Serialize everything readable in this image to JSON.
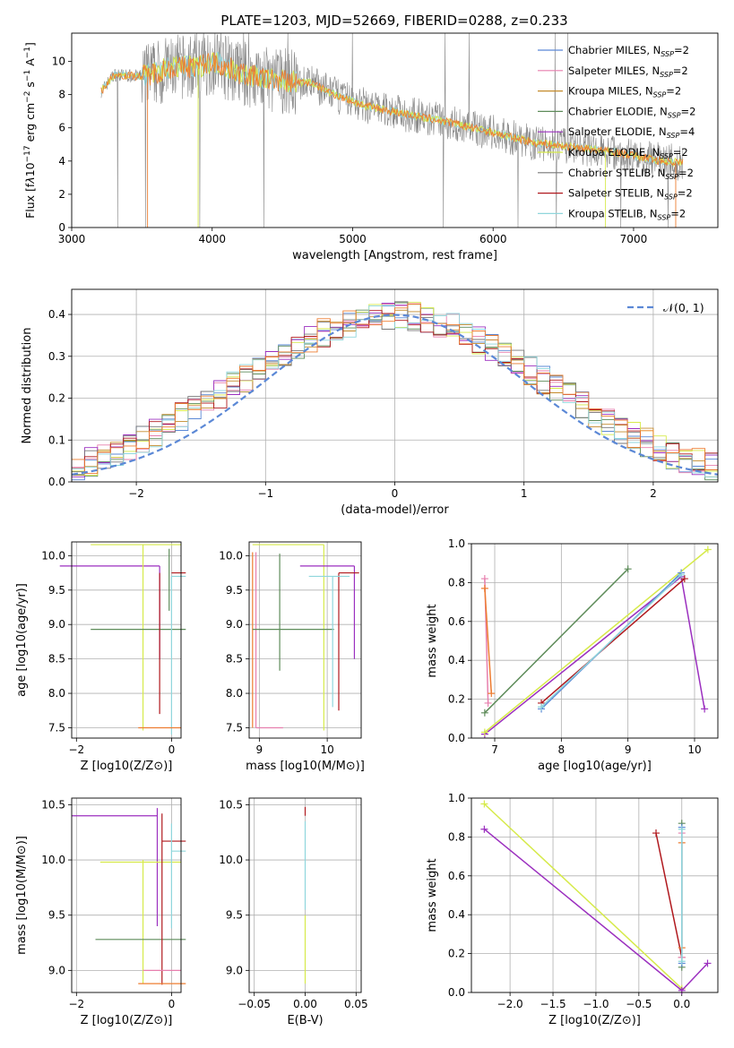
{
  "page": {
    "title": "PLATE=1203, MJD=52669, FIBERID=0288, z=0.233"
  },
  "legend_entries": [
    {
      "label": "Chabrier MILES, N$_{SSP}$=2",
      "text": "Chabrier MILES, N",
      "sub": "SSP",
      "tail": "=2",
      "color": "#5b88d6"
    },
    {
      "label": "Salpeter MILES, N$_{SSP}$=2",
      "text": "Salpeter MILES, N",
      "sub": "SSP",
      "tail": "=2",
      "color": "#e77fae"
    },
    {
      "label": "Kroupa MILES, N$_{SSP}$=2",
      "text": "Kroupa MILES, N",
      "sub": "SSP",
      "tail": "=2",
      "color": "#c48a2b"
    },
    {
      "label": "Chabrier ELODIE, N$_{SSP}$=2",
      "text": "Chabrier ELODIE, N",
      "sub": "SSP",
      "tail": "=2",
      "color": "#5e8c5a"
    },
    {
      "label": "Salpeter ELODIE, N$_{SSP}$=4",
      "text": "Salpeter ELODIE, N",
      "sub": "SSP",
      "tail": "=4",
      "color": "#9b2fbf"
    },
    {
      "label": "Kroupa ELODIE, N$_{SSP}$=2",
      "text": "Kroupa ELODIE, N",
      "sub": "SSP",
      "tail": "=2",
      "color": "#d6ea4a"
    },
    {
      "label": "Chabrier STELIB, N$_{SSP}$=2",
      "text": "Chabrier STELIB, N",
      "sub": "SSP",
      "tail": "=2",
      "color": "#777777"
    },
    {
      "label": "Salpeter STELIB, N$_{SSP}$=2",
      "text": "Salpeter STELIB, N",
      "sub": "SSP",
      "tail": "=2",
      "color": "#b0191e"
    },
    {
      "label": "Kroupa STELIB, N$_{SSP}$=2",
      "text": "Kroupa STELIB, N",
      "sub": "SSP",
      "tail": "=2",
      "color": "#8fd6dc"
    }
  ],
  "chart_data": [
    {
      "id": "spectrum",
      "type": "line",
      "title": "PLATE=1203, MJD=52669, FIBERID=0288, z=0.233",
      "xlabel": "wavelength [Angstrom, rest frame]",
      "ylabel_parts": [
        "Flux [f",
        "λ",
        "10",
        "−17",
        " erg cm",
        "−2",
        " s",
        "−1",
        " A",
        "−1",
        "]"
      ],
      "xlim": [
        3000,
        7600
      ],
      "ylim": [
        0,
        11.7
      ],
      "xticks": [
        "3000",
        "4000",
        "5000",
        "6000",
        "7000"
      ],
      "yticks": [
        "0",
        "2",
        "4",
        "6",
        "8",
        "10"
      ],
      "data_color": "#888888",
      "model_colors": [
        "#8fd6dc",
        "#d6ea4a",
        "#ed7d31"
      ],
      "continuum": [
        [
          3210,
          8.2
        ],
        [
          3300,
          9.2
        ],
        [
          3500,
          9.1
        ],
        [
          3700,
          9.6
        ],
        [
          3900,
          9.7
        ],
        [
          4000,
          10.0
        ],
        [
          4200,
          9.3
        ],
        [
          4400,
          8.9
        ],
        [
          4700,
          8.7
        ],
        [
          4900,
          7.9
        ],
        [
          5100,
          7.3
        ],
        [
          5400,
          6.8
        ],
        [
          5700,
          6.3
        ],
        [
          6000,
          5.7
        ],
        [
          6300,
          5.1
        ],
        [
          6600,
          4.8
        ],
        [
          6900,
          4.5
        ],
        [
          7200,
          4.0
        ],
        [
          7350,
          3.9
        ]
      ],
      "series_names": [
        "Chabrier MILES, N$_{SSP}$=2",
        "Salpeter MILES, N$_{SSP}$=2",
        "Kroupa MILES, N$_{SSP}$=2",
        "Chabrier ELODIE, N$_{SSP}$=2",
        "Salpeter ELODIE, N$_{SSP}$=4",
        "Kroupa ELODIE, N$_{SSP}$=2",
        "Chabrier STELIB, N$_{SSP}$=2",
        "Salpeter STELIB, N$_{SSP}$=2",
        "Kroupa STELIB, N$_{SSP}$=2"
      ],
      "legend": "upper right"
    },
    {
      "id": "residuals",
      "type": "histogram",
      "xlabel": "(data-model)/error",
      "ylabel": "Normed distribution",
      "xlim": [
        -2.5,
        2.5
      ],
      "ylim": [
        0,
        0.46
      ],
      "xticks": [
        "−2",
        "−1",
        "0",
        "1",
        "2"
      ],
      "yticks": [
        "0.0",
        "0.1",
        "0.2",
        "0.3",
        "0.4"
      ],
      "grid": true,
      "gaussian": {
        "label": "𝒩(0, 1)",
        "mean": 0,
        "sigma": 1,
        "color": "#5b88d6"
      },
      "bin_width": 0.1,
      "hist_center": [
        0.033,
        0.047,
        0.06,
        0.07,
        0.085,
        0.1,
        0.115,
        0.135,
        0.155,
        0.17,
        0.19,
        0.21,
        0.23,
        0.25,
        0.27,
        0.29,
        0.305,
        0.32,
        0.34,
        0.355,
        0.365,
        0.375,
        0.385,
        0.39,
        0.395,
        0.4,
        0.395,
        0.39,
        0.38,
        0.37,
        0.355,
        0.34,
        0.32,
        0.305,
        0.285,
        0.265,
        0.245,
        0.225,
        0.205,
        0.185,
        0.165,
        0.145,
        0.125,
        0.11,
        0.095,
        0.08,
        0.065,
        0.055,
        0.045,
        0.035
      ]
    },
    {
      "id": "age-vs-Z",
      "type": "errorbar",
      "xlabel": "Z [log10(Z/Z⊙)]",
      "ylabel": "age  [log10(age/yr)]",
      "xlim": [
        -2.1,
        0.2
      ],
      "ylim": [
        7.35,
        10.2
      ],
      "xticks": [
        "−2",
        "0"
      ],
      "yticks": [
        "7.5",
        "8.0",
        "8.5",
        "9.0",
        "9.5",
        "10.0"
      ],
      "grid": true,
      "points": [
        {
          "color": "#9b2fbf",
          "x": -0.25,
          "xerr": [
            2.1,
            0.0
          ],
          "y": 9.85,
          "yerr": [
            0.0,
            0.0
          ]
        },
        {
          "color": "#9b2fbf",
          "x": -0.25,
          "xerr": [
            0.0,
            0.0
          ],
          "y": 9.0,
          "yerr": [
            0.5,
            0.85
          ]
        },
        {
          "color": "#d6ea4a",
          "x": -0.6,
          "xerr": [
            1.1,
            0.8
          ],
          "y": 10.16,
          "yerr": [
            2.7,
            0.0
          ]
        },
        {
          "color": "#5e8c5a",
          "x": -0.3,
          "xerr": [
            1.4,
            0.6
          ],
          "y": 8.93,
          "yerr": [
            0.0,
            0.0
          ]
        },
        {
          "color": "#5e8c5a",
          "x": -0.05,
          "xerr": [
            0.0,
            0.0
          ],
          "y": 9.2,
          "yerr": [
            0.0,
            0.9
          ]
        },
        {
          "color": "#b0191e",
          "x": -0.25,
          "xerr": [
            0.0,
            0.0
          ],
          "y": 8.9,
          "yerr": [
            1.2,
            0.85
          ]
        },
        {
          "color": "#b0191e",
          "x": 0.0,
          "xerr": [
            0.0,
            0.3
          ],
          "y": 9.75,
          "yerr": [
            0.0,
            0.0
          ]
        },
        {
          "color": "#8fd6dc",
          "x": 0.0,
          "xerr": [
            0.0,
            0.3
          ],
          "y": 9.7,
          "yerr": [
            2.3,
            0.0
          ]
        },
        {
          "color": "#ed7d31",
          "x": -0.4,
          "xerr": [
            0.3,
            0.6
          ],
          "y": 7.5,
          "yerr": [
            0.0,
            0.0
          ]
        }
      ]
    },
    {
      "id": "age-vs-mass",
      "type": "errorbar",
      "xlabel": "mass [log10(M/M⊙)]",
      "ylabel": "",
      "xlim": [
        8.85,
        10.5
      ],
      "ylim": [
        7.35,
        10.2
      ],
      "xticks": [
        "9",
        "10"
      ],
      "yticks": [
        "7.5",
        "8.0",
        "8.5",
        "9.0",
        "9.5",
        "10.0"
      ],
      "grid": true,
      "points": [
        {
          "color": "#e77fae",
          "x": 8.95,
          "xerr": [
            0.0,
            0.4
          ],
          "y": 7.5,
          "yerr": [
            0.0,
            2.55
          ]
        },
        {
          "color": "#ed7d31",
          "x": 8.9,
          "xerr": [
            0.0,
            0.0
          ],
          "y": 7.5,
          "yerr": [
            0.0,
            2.55
          ]
        },
        {
          "color": "#d6ea4a",
          "x": 9.95,
          "xerr": [
            1.05,
            0.0
          ],
          "y": 10.16,
          "yerr": [
            2.7,
            0.0
          ]
        },
        {
          "color": "#5e8c5a",
          "x": 9.3,
          "xerr": [
            0.4,
            0.8
          ],
          "y": 8.93,
          "yerr": [
            0.6,
            1.1
          ]
        },
        {
          "color": "#9b2fbf",
          "x": 10.4,
          "xerr": [
            0.8,
            0.0
          ],
          "y": 9.85,
          "yerr": [
            1.35,
            0.0
          ]
        },
        {
          "color": "#b0191e",
          "x": 10.17,
          "xerr": [
            0.0,
            0.3
          ],
          "y": 9.75,
          "yerr": [
            2.0,
            0.0
          ]
        },
        {
          "color": "#8fd6dc",
          "x": 10.08,
          "xerr": [
            0.35,
            0.25
          ],
          "y": 9.7,
          "yerr": [
            1.9,
            0.0
          ]
        }
      ]
    },
    {
      "id": "weight-vs-age",
      "type": "line",
      "xlabel": "age  [log10(age/yr)]",
      "ylabel": "mass weight",
      "xlim": [
        6.65,
        10.35
      ],
      "ylim": [
        0,
        1.0
      ],
      "xticks": [
        "7",
        "8",
        "9",
        "10"
      ],
      "yticks": [
        "0.0",
        "0.2",
        "0.4",
        "0.6",
        "0.8",
        "1.0"
      ],
      "grid": true,
      "series": [
        {
          "color": "#e77fae",
          "x": [
            6.85,
            6.9
          ],
          "y": [
            0.82,
            0.18
          ]
        },
        {
          "color": "#ed7d31",
          "x": [
            6.85,
            6.95
          ],
          "y": [
            0.77,
            0.23
          ]
        },
        {
          "color": "#5e8c5a",
          "x": [
            6.85,
            9.0
          ],
          "y": [
            0.13,
            0.87
          ]
        },
        {
          "color": "#9b2fbf",
          "x": [
            6.85,
            9.8,
            10.15
          ],
          "y": [
            0.02,
            0.83,
            0.15
          ]
        },
        {
          "color": "#d6ea4a",
          "x": [
            6.85,
            10.2
          ],
          "y": [
            0.03,
            0.97
          ]
        },
        {
          "color": "#b0191e",
          "x": [
            7.7,
            9.85
          ],
          "y": [
            0.18,
            0.82
          ]
        },
        {
          "color": "#5b88d6",
          "x": [
            7.7,
            9.8
          ],
          "y": [
            0.15,
            0.85
          ]
        },
        {
          "color": "#8fd6dc",
          "x": [
            7.7,
            9.8
          ],
          "y": [
            0.16,
            0.84
          ]
        }
      ]
    },
    {
      "id": "mass-vs-Z",
      "type": "errorbar",
      "xlabel": "Z [log10(Z/Z⊙)]",
      "ylabel": "mass [log10(M/M⊙)]",
      "xlim": [
        -2.1,
        0.2
      ],
      "ylim": [
        8.8,
        10.56
      ],
      "xticks": [
        "−2",
        "0"
      ],
      "yticks": [
        "9.0",
        "9.5",
        "10.0",
        "10.5"
      ],
      "grid": true,
      "points": [
        {
          "color": "#9b2fbf",
          "x": -0.3,
          "xerr": [
            1.8,
            0.0
          ],
          "y": 10.4,
          "yerr": [
            1.0,
            0.07
          ]
        },
        {
          "color": "#d6ea4a",
          "x": -0.6,
          "xerr": [
            0.9,
            0.8
          ],
          "y": 9.98,
          "yerr": [
            1.1,
            0.02
          ]
        },
        {
          "color": "#5e8c5a",
          "x": -0.3,
          "xerr": [
            1.3,
            0.6
          ],
          "y": 9.28,
          "yerr": [
            0.0,
            0.0
          ]
        },
        {
          "color": "#b0191e",
          "x": -0.2,
          "xerr": [
            0.0,
            0.5
          ],
          "y": 10.17,
          "yerr": [
            1.3,
            0.25
          ]
        },
        {
          "color": "#8fd6dc",
          "x": 0.0,
          "xerr": [
            0.0,
            0.3
          ],
          "y": 10.08,
          "yerr": [
            0.7,
            0.25
          ]
        },
        {
          "color": "#e77fae",
          "x": -0.1,
          "xerr": [
            0.5,
            0.3
          ],
          "y": 9.0,
          "yerr": [
            0.0,
            0.0
          ]
        },
        {
          "color": "#ed7d31",
          "x": -0.3,
          "xerr": [
            0.4,
            0.6
          ],
          "y": 8.88,
          "yerr": [
            0.0,
            0.0
          ]
        }
      ]
    },
    {
      "id": "mass-vs-EBV",
      "type": "errorbar",
      "xlabel": "E(B-V)",
      "ylabel": "",
      "xlim": [
        -0.055,
        0.055
      ],
      "ylim": [
        8.8,
        10.56
      ],
      "xticks": [
        "−0.05",
        "0.00",
        "0.05"
      ],
      "yticks": [
        "9.0",
        "9.5",
        "10.0",
        "10.5"
      ],
      "grid": true,
      "points": [
        {
          "color": "#b0191e",
          "x": 0.0,
          "xerr": [
            0,
            0
          ],
          "y": 10.4,
          "yerr": [
            0.0,
            0.08
          ]
        },
        {
          "color": "#8fd6dc",
          "x": 0.0,
          "xerr": [
            0,
            0
          ],
          "y": 10.0,
          "yerr": [
            0.45,
            0.35
          ]
        },
        {
          "color": "#d6ea4a",
          "x": 0.0,
          "xerr": [
            0,
            0
          ],
          "y": 9.2,
          "yerr": [
            0.32,
            0.3
          ]
        }
      ]
    },
    {
      "id": "weight-vs-Z",
      "type": "line",
      "xlabel": "Z [log10(Z/Z⊙)]",
      "ylabel": "mass weight",
      "xlim": [
        -2.45,
        0.42
      ],
      "ylim": [
        0,
        1.0
      ],
      "xticks": [
        "−2.0",
        "−1.5",
        "−1.0",
        "−0.5",
        "0.0"
      ],
      "yticks": [
        "0.0",
        "0.2",
        "0.4",
        "0.6",
        "0.8",
        "1.0"
      ],
      "grid": true,
      "series": [
        {
          "color": "#d6ea4a",
          "x": [
            -2.3,
            0.0
          ],
          "y": [
            0.97,
            0.02
          ]
        },
        {
          "color": "#9b2fbf",
          "x": [
            -2.3,
            0.0,
            0.3
          ],
          "y": [
            0.84,
            0.01,
            0.15
          ]
        },
        {
          "color": "#b0191e",
          "x": [
            -0.3,
            0.0
          ],
          "y": [
            0.82,
            0.18
          ]
        },
        {
          "color": "#5e8c5a",
          "x": [
            0.0,
            0.0
          ],
          "y": [
            0.13,
            0.87
          ]
        },
        {
          "color": "#e77fae",
          "x": [
            0.0,
            0.0
          ],
          "y": [
            0.18,
            0.82
          ]
        },
        {
          "color": "#ed7d31",
          "x": [
            0.0,
            0.0
          ],
          "y": [
            0.23,
            0.77
          ]
        },
        {
          "color": "#5b88d6",
          "x": [
            0.0,
            0.0
          ],
          "y": [
            0.15,
            0.85
          ]
        },
        {
          "color": "#8fd6dc",
          "x": [
            0.0,
            0.0
          ],
          "y": [
            0.16,
            0.84
          ]
        }
      ]
    }
  ]
}
